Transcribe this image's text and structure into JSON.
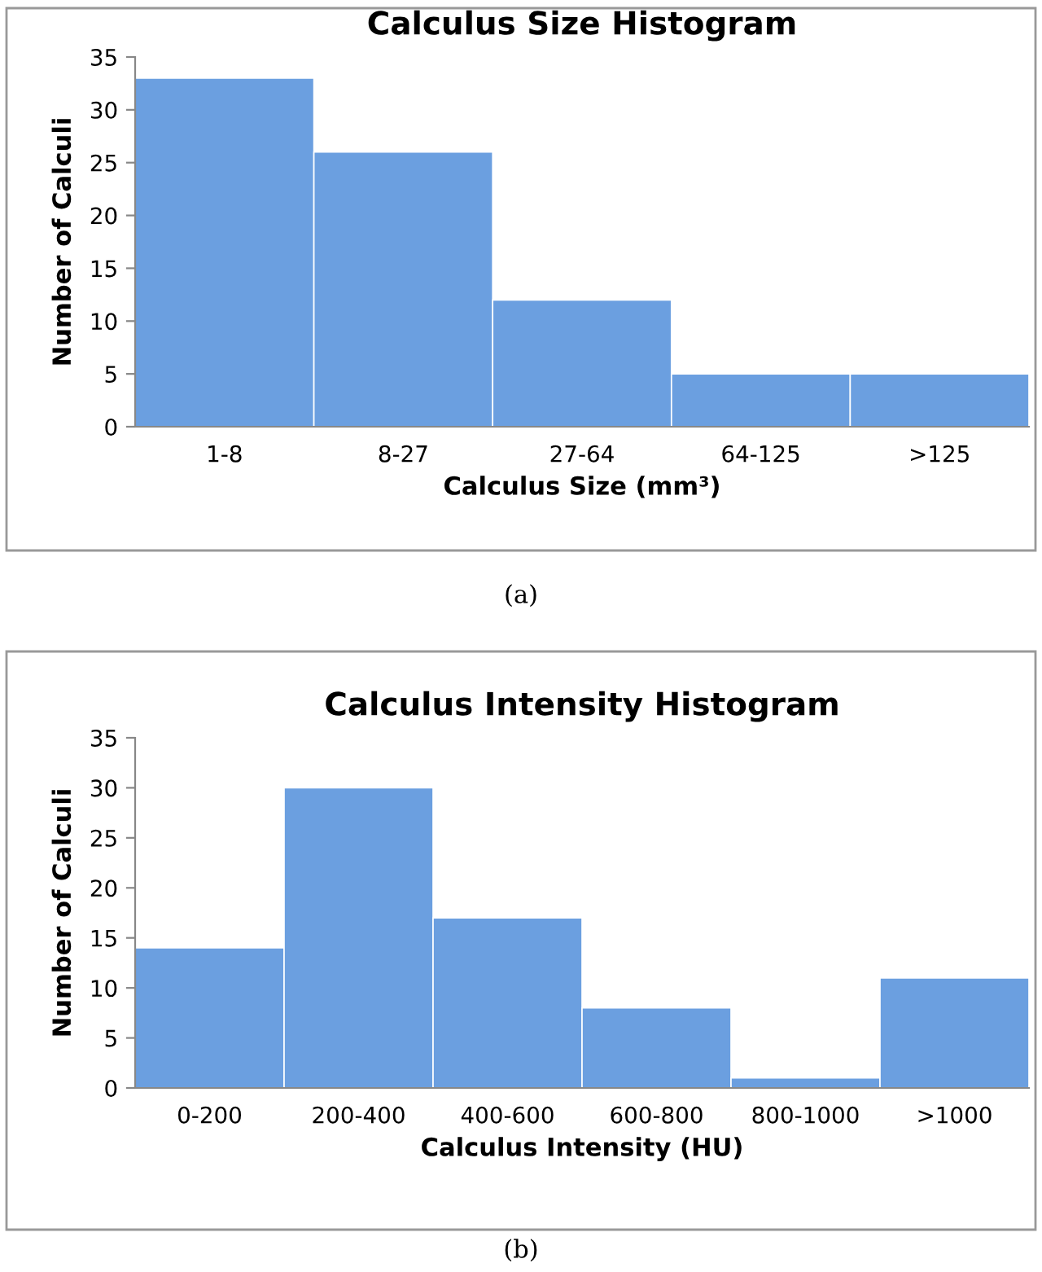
{
  "chart_data": [
    {
      "type": "bar",
      "title": "Calculus Size Histogram",
      "xlabel": "Calculus Size (mm³)",
      "ylabel": "Number of Calculi",
      "categories": [
        "1-8",
        "8-27",
        "27-64",
        "64-125",
        ">125"
      ],
      "values": [
        33,
        26,
        12,
        5,
        5
      ],
      "color": "#6b9fe0",
      "ylim": [
        0,
        35
      ],
      "yticks": [
        0,
        5,
        10,
        15,
        20,
        25,
        30,
        35
      ],
      "grid": false,
      "annotations": [
        "(a)"
      ]
    },
    {
      "type": "bar",
      "title": "Calculus Intensity Histogram",
      "xlabel": "Calculus Intensity (HU)",
      "ylabel": "Number of Calculi",
      "categories": [
        "0-200",
        "200-400",
        "400-600",
        "600-800",
        "800-1000",
        ">1000"
      ],
      "values": [
        14,
        30,
        17,
        8,
        1,
        11
      ],
      "color": "#6b9fe0",
      "ylim": [
        0,
        35
      ],
      "yticks": [
        0,
        5,
        10,
        15,
        20,
        25,
        30,
        35
      ],
      "grid": false,
      "annotations": [
        "(b)"
      ]
    }
  ]
}
